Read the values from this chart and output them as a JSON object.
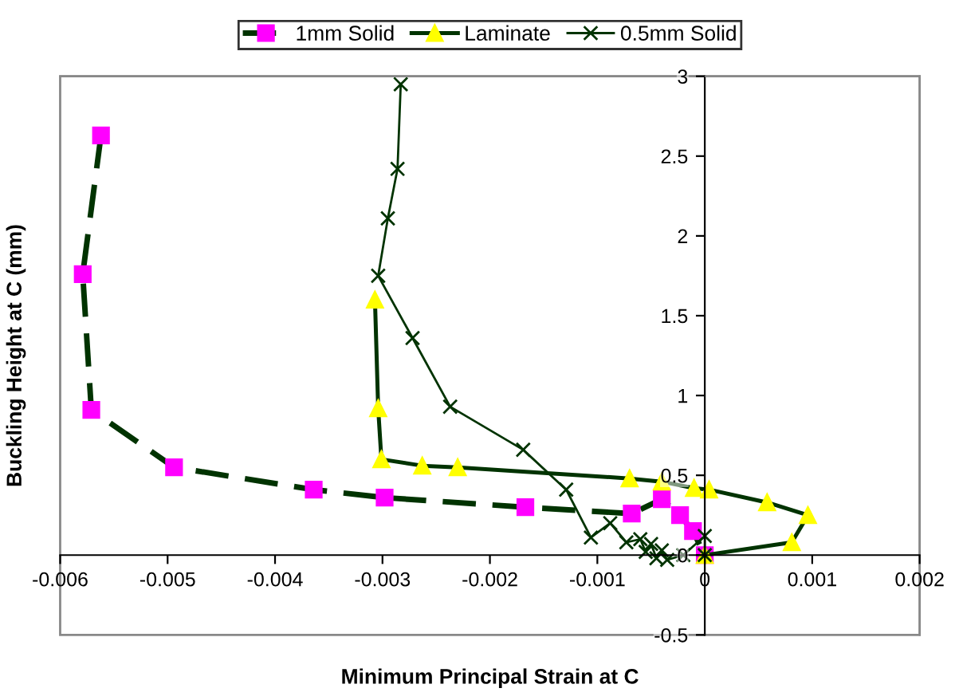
{
  "chart_data": {
    "type": "line",
    "xlabel": "Minimum Principal Strain at C",
    "ylabel": "Buckling Height at C (mm)",
    "xlim": [
      -0.006,
      0.002
    ],
    "xticks": [
      -0.006,
      -0.005,
      -0.004,
      -0.003,
      -0.002,
      -0.001,
      0,
      0.001,
      0.002
    ],
    "ylim": [
      -0.5,
      3
    ],
    "yticks": [
      -0.5,
      0,
      0.5,
      1,
      1.5,
      2,
      2.5,
      3
    ],
    "grid": false,
    "legend": "top",
    "series": [
      {
        "name": "1mm Solid",
        "color": "#ff00ff",
        "marker": "square",
        "line_style": "dashed",
        "x": [
          -0.00562,
          -0.00579,
          -0.00571,
          -0.00494,
          -0.00364,
          -0.00298,
          -0.00167,
          -0.00068,
          -0.0004,
          -0.00023,
          -0.00011,
          0
        ],
        "values": [
          2.63,
          1.76,
          0.91,
          0.55,
          0.41,
          0.36,
          0.3,
          0.26,
          0.35,
          0.25,
          0.15,
          0
        ]
      },
      {
        "name": "Laminate",
        "color": "#ffff00",
        "marker": "triangle",
        "line_style": "solid",
        "x": [
          -0.00307,
          -0.00304,
          -0.00301,
          -0.00263,
          -0.0023,
          -0.0007,
          -0.0004,
          -0.0001,
          4e-05,
          0.00058,
          0.00096,
          0.00081,
          0
        ],
        "values": [
          1.6,
          0.92,
          0.6,
          0.56,
          0.55,
          0.48,
          0.46,
          0.42,
          0.41,
          0.33,
          0.25,
          0.08,
          0
        ]
      },
      {
        "name": "0.5mm Solid",
        "color": "#003300",
        "marker": "cross",
        "line_style": "solid",
        "x": [
          -0.00283,
          -0.00286,
          -0.00295,
          -0.00304,
          -0.00272,
          -0.00237,
          -0.00169,
          -0.00129,
          -0.00106,
          -0.00088,
          -0.00073,
          -0.0006,
          -0.00055,
          -0.0005,
          -0.00045,
          -0.0004,
          -0.00035,
          -0.0002,
          0,
          0
        ],
        "values": [
          2.95,
          2.42,
          2.11,
          1.75,
          1.36,
          0.93,
          0.66,
          0.41,
          0.11,
          0.2,
          0.08,
          0.1,
          0.02,
          0.07,
          -0.02,
          0.03,
          -0.03,
          0.0,
          0.12,
          0
        ]
      }
    ]
  }
}
